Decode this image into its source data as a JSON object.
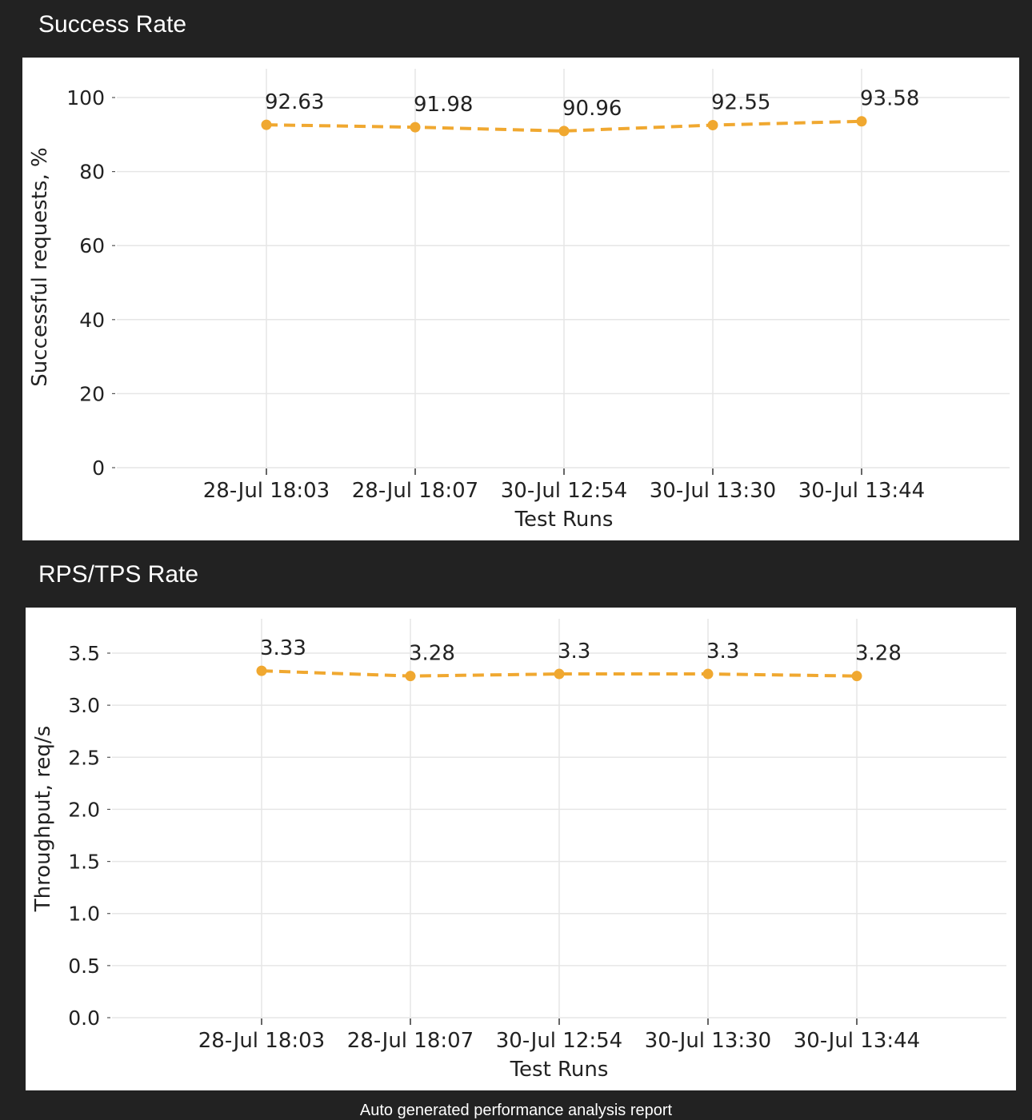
{
  "sections": {
    "success": {
      "title": "Success Rate"
    },
    "rps": {
      "title": "RPS/TPS Rate"
    }
  },
  "footer": {
    "text": "Auto generated performance analysis report"
  },
  "colors": {
    "line": "#f0a830",
    "grid": "#e6e6e6",
    "page_bg": "#222222",
    "panel_bg": "#ffffff"
  },
  "chart_data": [
    {
      "type": "line",
      "categories": [
        "28-Jul 18:03",
        "28-Jul 18:07",
        "30-Jul 12:54",
        "30-Jul 13:30",
        "30-Jul 13:44"
      ],
      "values": [
        92.63,
        91.98,
        90.96,
        92.55,
        93.58
      ],
      "data_labels": [
        "92.63",
        "91.98",
        "90.96",
        "92.55",
        "93.58"
      ],
      "xlabel": "Test Runs",
      "ylabel": "Successful requests, %",
      "ylim": [
        0,
        100
      ],
      "yticks": [
        "0",
        "20",
        "40",
        "60",
        "80",
        "100"
      ],
      "ytick_values": [
        0,
        20,
        40,
        60,
        80,
        100
      ],
      "line_style": "dashed",
      "grid": true
    },
    {
      "type": "line",
      "categories": [
        "28-Jul 18:03",
        "28-Jul 18:07",
        "30-Jul 12:54",
        "30-Jul 13:30",
        "30-Jul 13:44"
      ],
      "values": [
        3.33,
        3.28,
        3.3,
        3.3,
        3.28
      ],
      "data_labels": [
        "3.33",
        "3.28",
        "3.3",
        "3.3",
        "3.28"
      ],
      "xlabel": "Test Runs",
      "ylabel": "Throughput, req/s",
      "ylim": [
        0,
        3.5
      ],
      "yticks": [
        "0.0",
        "0.5",
        "1.0",
        "1.5",
        "2.0",
        "2.5",
        "3.0",
        "3.5"
      ],
      "ytick_values": [
        0,
        0.5,
        1,
        1.5,
        2,
        2.5,
        3,
        3.5
      ],
      "line_style": "dashed",
      "grid": true
    }
  ]
}
